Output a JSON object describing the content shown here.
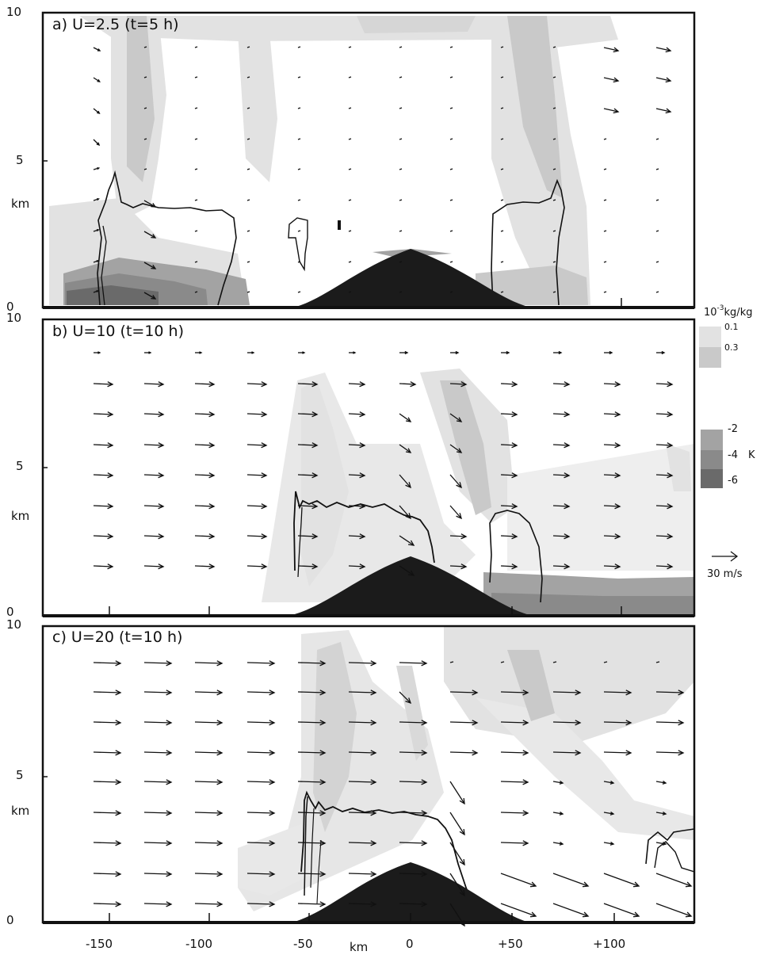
{
  "panels": [
    {
      "id": "a",
      "title": "a) U=2.5 (t=5 h)",
      "y_labels": [
        "10",
        "5",
        "km",
        "0"
      ]
    },
    {
      "id": "b",
      "title": "b) U=10 (t=10 h)",
      "y_labels": [
        "10",
        "5",
        "km",
        "0"
      ]
    },
    {
      "id": "c",
      "title": "c) U=20 (t=10 h)",
      "y_labels": [
        "10",
        "5",
        "km",
        "0"
      ]
    }
  ],
  "x_axis": {
    "ticks": [
      "-150",
      "-100",
      "-50",
      "0",
      "+50",
      "+100"
    ],
    "unit_label": "km"
  },
  "legend": {
    "moisture_unit_base": "10",
    "moisture_unit_exp": "-3",
    "moisture_unit_rest": "kg/kg",
    "moisture_levels": [
      "0.1",
      "0.3"
    ],
    "moisture_colors": [
      "#e2e2e2",
      "#c9c9c9"
    ],
    "temp_levels": [
      "-2",
      "-4",
      "-6"
    ],
    "temp_unit": "K",
    "temp_colors": [
      "#a3a3a3",
      "#8a8a8a",
      "#6a6a6a"
    ],
    "reference_vector_label": "30 m/s"
  },
  "colors": {
    "terrain": "#1b1b1b",
    "axis": "#111111",
    "contour": "#111111"
  }
}
